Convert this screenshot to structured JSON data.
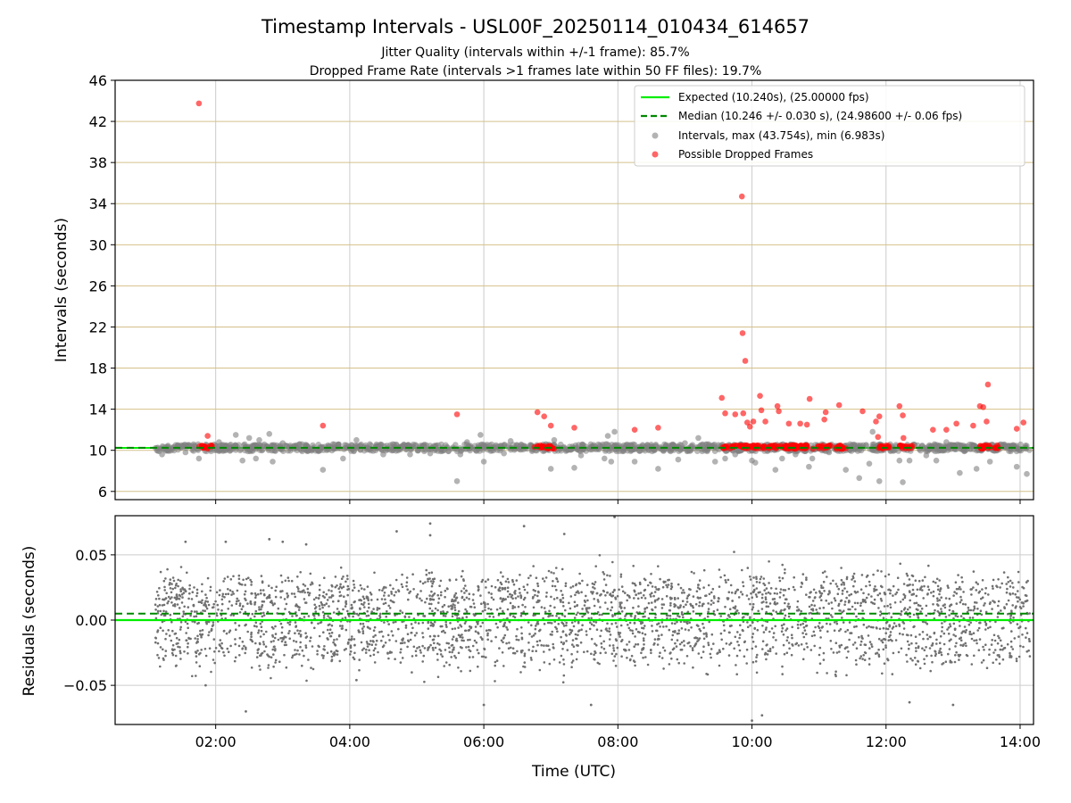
{
  "figure": {
    "title": "Timestamp Intervals - USL00F_20250114_010434_614657",
    "subtitle_1": "Jitter Quality (intervals within +/-1 frame): 85.7%",
    "subtitle_2": "Dropped Frame Rate (intervals >1 frames late within 50 FF files): 19.7%",
    "colors": {
      "expected": "#00ee00",
      "median": "#008800",
      "intervals": "#808080",
      "dropped": "#ff0000",
      "hgrid": "#d4c08a",
      "vgrid": "#cccccc",
      "residuals": "#707070"
    }
  },
  "chart_data": [
    {
      "type": "scatter",
      "ylabel": "Intervals (seconds)",
      "xlabel": "",
      "ylim": [
        5.2,
        46
      ],
      "xlim_hours": [
        0.5,
        14.2
      ],
      "y_ticks": [
        "6",
        "10",
        "14",
        "18",
        "22",
        "26",
        "30",
        "34",
        "38",
        "42",
        "46"
      ],
      "y_tick_values": [
        6,
        10,
        14,
        18,
        22,
        26,
        30,
        34,
        38,
        42,
        46
      ],
      "grid": "horizontal and vertical",
      "legend_position": "top-right",
      "legend": [
        "Expected (10.240s), (25.00000 fps)",
        "Median (10.246 +/- 0.030 s), (24.98600 +/- 0.06 fps)",
        "Intervals, max (43.754s), min (6.983s)",
        "Possible Dropped Frames"
      ],
      "expected_interval": 10.24,
      "median_interval": 10.246,
      "x_range_hours": [
        1.1,
        14.15
      ],
      "dense_band": [
        9.9,
        10.6
      ],
      "dropped_clusters_hours": [
        [
          1.75,
          1.95
        ],
        [
          6.75,
          7.05
        ],
        [
          9.55,
          11.4
        ],
        [
          11.85,
          12.05
        ],
        [
          12.2,
          12.4
        ],
        [
          13.4,
          13.7
        ]
      ],
      "intervals_outliers": [
        {
          "x": 1.2,
          "y": 9.6
        },
        {
          "x": 1.55,
          "y": 9.8
        },
        {
          "x": 1.75,
          "y": 9.2
        },
        {
          "x": 2.05,
          "y": 10.8
        },
        {
          "x": 2.3,
          "y": 11.5
        },
        {
          "x": 2.4,
          "y": 9.0
        },
        {
          "x": 2.5,
          "y": 11.2
        },
        {
          "x": 2.6,
          "y": 9.2
        },
        {
          "x": 2.65,
          "y": 11.0
        },
        {
          "x": 2.8,
          "y": 11.6
        },
        {
          "x": 2.85,
          "y": 8.9
        },
        {
          "x": 3.0,
          "y": 10.7
        },
        {
          "x": 3.25,
          "y": 10.6
        },
        {
          "x": 3.6,
          "y": 8.1
        },
        {
          "x": 3.75,
          "y": 10.6
        },
        {
          "x": 3.9,
          "y": 9.2
        },
        {
          "x": 4.1,
          "y": 11.0
        },
        {
          "x": 4.3,
          "y": 10.6
        },
        {
          "x": 4.5,
          "y": 9.6
        },
        {
          "x": 4.9,
          "y": 9.6
        },
        {
          "x": 5.2,
          "y": 9.7
        },
        {
          "x": 5.6,
          "y": 7.0
        },
        {
          "x": 5.65,
          "y": 9.6
        },
        {
          "x": 5.75,
          "y": 10.8
        },
        {
          "x": 5.95,
          "y": 11.5
        },
        {
          "x": 6.0,
          "y": 8.9
        },
        {
          "x": 6.3,
          "y": 9.7
        },
        {
          "x": 6.4,
          "y": 10.9
        },
        {
          "x": 7.0,
          "y": 8.2
        },
        {
          "x": 7.05,
          "y": 11.0
        },
        {
          "x": 7.35,
          "y": 8.3
        },
        {
          "x": 7.45,
          "y": 9.5
        },
        {
          "x": 7.8,
          "y": 9.2
        },
        {
          "x": 7.85,
          "y": 11.4
        },
        {
          "x": 7.9,
          "y": 8.9
        },
        {
          "x": 7.95,
          "y": 11.8
        },
        {
          "x": 8.25,
          "y": 8.9
        },
        {
          "x": 8.6,
          "y": 8.2
        },
        {
          "x": 8.9,
          "y": 9.1
        },
        {
          "x": 9.0,
          "y": 10.7
        },
        {
          "x": 9.2,
          "y": 11.2
        },
        {
          "x": 9.45,
          "y": 8.9
        },
        {
          "x": 9.6,
          "y": 9.2
        },
        {
          "x": 9.75,
          "y": 9.6
        },
        {
          "x": 10.0,
          "y": 9.0
        },
        {
          "x": 10.05,
          "y": 8.8
        },
        {
          "x": 10.35,
          "y": 8.1
        },
        {
          "x": 10.45,
          "y": 9.2
        },
        {
          "x": 10.65,
          "y": 9.6
        },
        {
          "x": 10.85,
          "y": 8.4
        },
        {
          "x": 10.9,
          "y": 9.2
        },
        {
          "x": 11.15,
          "y": 9.8
        },
        {
          "x": 11.4,
          "y": 8.1
        },
        {
          "x": 11.6,
          "y": 7.3
        },
        {
          "x": 11.75,
          "y": 8.7
        },
        {
          "x": 11.8,
          "y": 11.8
        },
        {
          "x": 11.9,
          "y": 7.0
        },
        {
          "x": 12.2,
          "y": 9.0
        },
        {
          "x": 12.25,
          "y": 6.9
        },
        {
          "x": 12.35,
          "y": 9.0
        },
        {
          "x": 12.6,
          "y": 9.5
        },
        {
          "x": 12.75,
          "y": 9.0
        },
        {
          "x": 12.9,
          "y": 10.8
        },
        {
          "x": 13.1,
          "y": 7.8
        },
        {
          "x": 13.2,
          "y": 10.4
        },
        {
          "x": 13.35,
          "y": 8.2
        },
        {
          "x": 13.55,
          "y": 8.9
        },
        {
          "x": 13.95,
          "y": 8.4
        },
        {
          "x": 14.1,
          "y": 7.7
        }
      ],
      "dropped_points": [
        {
          "x": 1.75,
          "y": 43.754
        },
        {
          "x": 1.88,
          "y": 11.4
        },
        {
          "x": 3.6,
          "y": 12.4
        },
        {
          "x": 5.6,
          "y": 13.5
        },
        {
          "x": 6.8,
          "y": 13.7
        },
        {
          "x": 6.9,
          "y": 13.3
        },
        {
          "x": 7.0,
          "y": 12.4
        },
        {
          "x": 7.35,
          "y": 12.2
        },
        {
          "x": 8.25,
          "y": 12.0
        },
        {
          "x": 8.6,
          "y": 12.2
        },
        {
          "x": 9.55,
          "y": 15.1
        },
        {
          "x": 9.6,
          "y": 13.6
        },
        {
          "x": 9.75,
          "y": 13.5
        },
        {
          "x": 9.85,
          "y": 34.7
        },
        {
          "x": 9.86,
          "y": 21.4
        },
        {
          "x": 9.87,
          "y": 13.6
        },
        {
          "x": 9.9,
          "y": 18.7
        },
        {
          "x": 9.93,
          "y": 12.7
        },
        {
          "x": 9.97,
          "y": 12.3
        },
        {
          "x": 10.02,
          "y": 12.8
        },
        {
          "x": 10.12,
          "y": 15.3
        },
        {
          "x": 10.14,
          "y": 13.9
        },
        {
          "x": 10.2,
          "y": 12.8
        },
        {
          "x": 10.38,
          "y": 14.3
        },
        {
          "x": 10.4,
          "y": 13.8
        },
        {
          "x": 10.55,
          "y": 12.6
        },
        {
          "x": 10.72,
          "y": 12.6
        },
        {
          "x": 10.82,
          "y": 12.5
        },
        {
          "x": 10.86,
          "y": 15.0
        },
        {
          "x": 11.1,
          "y": 13.7
        },
        {
          "x": 11.08,
          "y": 13.0
        },
        {
          "x": 11.3,
          "y": 14.4
        },
        {
          "x": 11.65,
          "y": 13.8
        },
        {
          "x": 11.85,
          "y": 12.8
        },
        {
          "x": 11.9,
          "y": 13.3
        },
        {
          "x": 11.88,
          "y": 11.3
        },
        {
          "x": 12.2,
          "y": 14.3
        },
        {
          "x": 12.25,
          "y": 13.4
        },
        {
          "x": 12.26,
          "y": 11.2
        },
        {
          "x": 12.7,
          "y": 12.0
        },
        {
          "x": 12.9,
          "y": 12.0
        },
        {
          "x": 13.05,
          "y": 12.6
        },
        {
          "x": 13.3,
          "y": 12.4
        },
        {
          "x": 13.4,
          "y": 14.3
        },
        {
          "x": 13.45,
          "y": 14.2
        },
        {
          "x": 13.5,
          "y": 12.8
        },
        {
          "x": 13.52,
          "y": 16.4
        },
        {
          "x": 13.95,
          "y": 12.1
        },
        {
          "x": 14.05,
          "y": 12.7
        }
      ]
    },
    {
      "type": "scatter",
      "ylabel": "Residuals (seconds)",
      "xlabel": "Time (UTC)",
      "ylim": [
        -0.08,
        0.08
      ],
      "xlim_hours": [
        0.5,
        14.2
      ],
      "y_ticks": [
        "−0.05",
        "0.00",
        "0.05"
      ],
      "y_tick_values": [
        -0.05,
        0.0,
        0.05
      ],
      "x_ticks": [
        "02:00",
        "04:00",
        "06:00",
        "08:00",
        "10:00",
        "12:00",
        "14:00"
      ],
      "x_tick_values": [
        2,
        4,
        6,
        8,
        10,
        12,
        14
      ],
      "grid": "horizontal and vertical",
      "expected_residual": 0.0,
      "median_residual": 0.005,
      "x_range_hours": [
        1.1,
        14.15
      ],
      "band_centers": [
        0.02,
        0.0,
        -0.02
      ],
      "outliers": [
        {
          "x": 1.55,
          "y": 0.06
        },
        {
          "x": 1.85,
          "y": -0.05
        },
        {
          "x": 2.15,
          "y": 0.06
        },
        {
          "x": 2.45,
          "y": -0.07
        },
        {
          "x": 2.8,
          "y": 0.062
        },
        {
          "x": 3.0,
          "y": 0.06
        },
        {
          "x": 3.35,
          "y": 0.058
        },
        {
          "x": 4.1,
          "y": -0.046
        },
        {
          "x": 4.7,
          "y": 0.068
        },
        {
          "x": 5.2,
          "y": 0.074
        },
        {
          "x": 5.2,
          "y": 0.065
        },
        {
          "x": 6.0,
          "y": -0.065
        },
        {
          "x": 6.6,
          "y": 0.072
        },
        {
          "x": 7.2,
          "y": 0.066
        },
        {
          "x": 7.6,
          "y": -0.065
        },
        {
          "x": 7.95,
          "y": 0.079
        },
        {
          "x": 10.0,
          "y": -0.077
        },
        {
          "x": 10.15,
          "y": -0.073
        },
        {
          "x": 12.35,
          "y": -0.063
        },
        {
          "x": 13.0,
          "y": -0.065
        }
      ]
    }
  ]
}
